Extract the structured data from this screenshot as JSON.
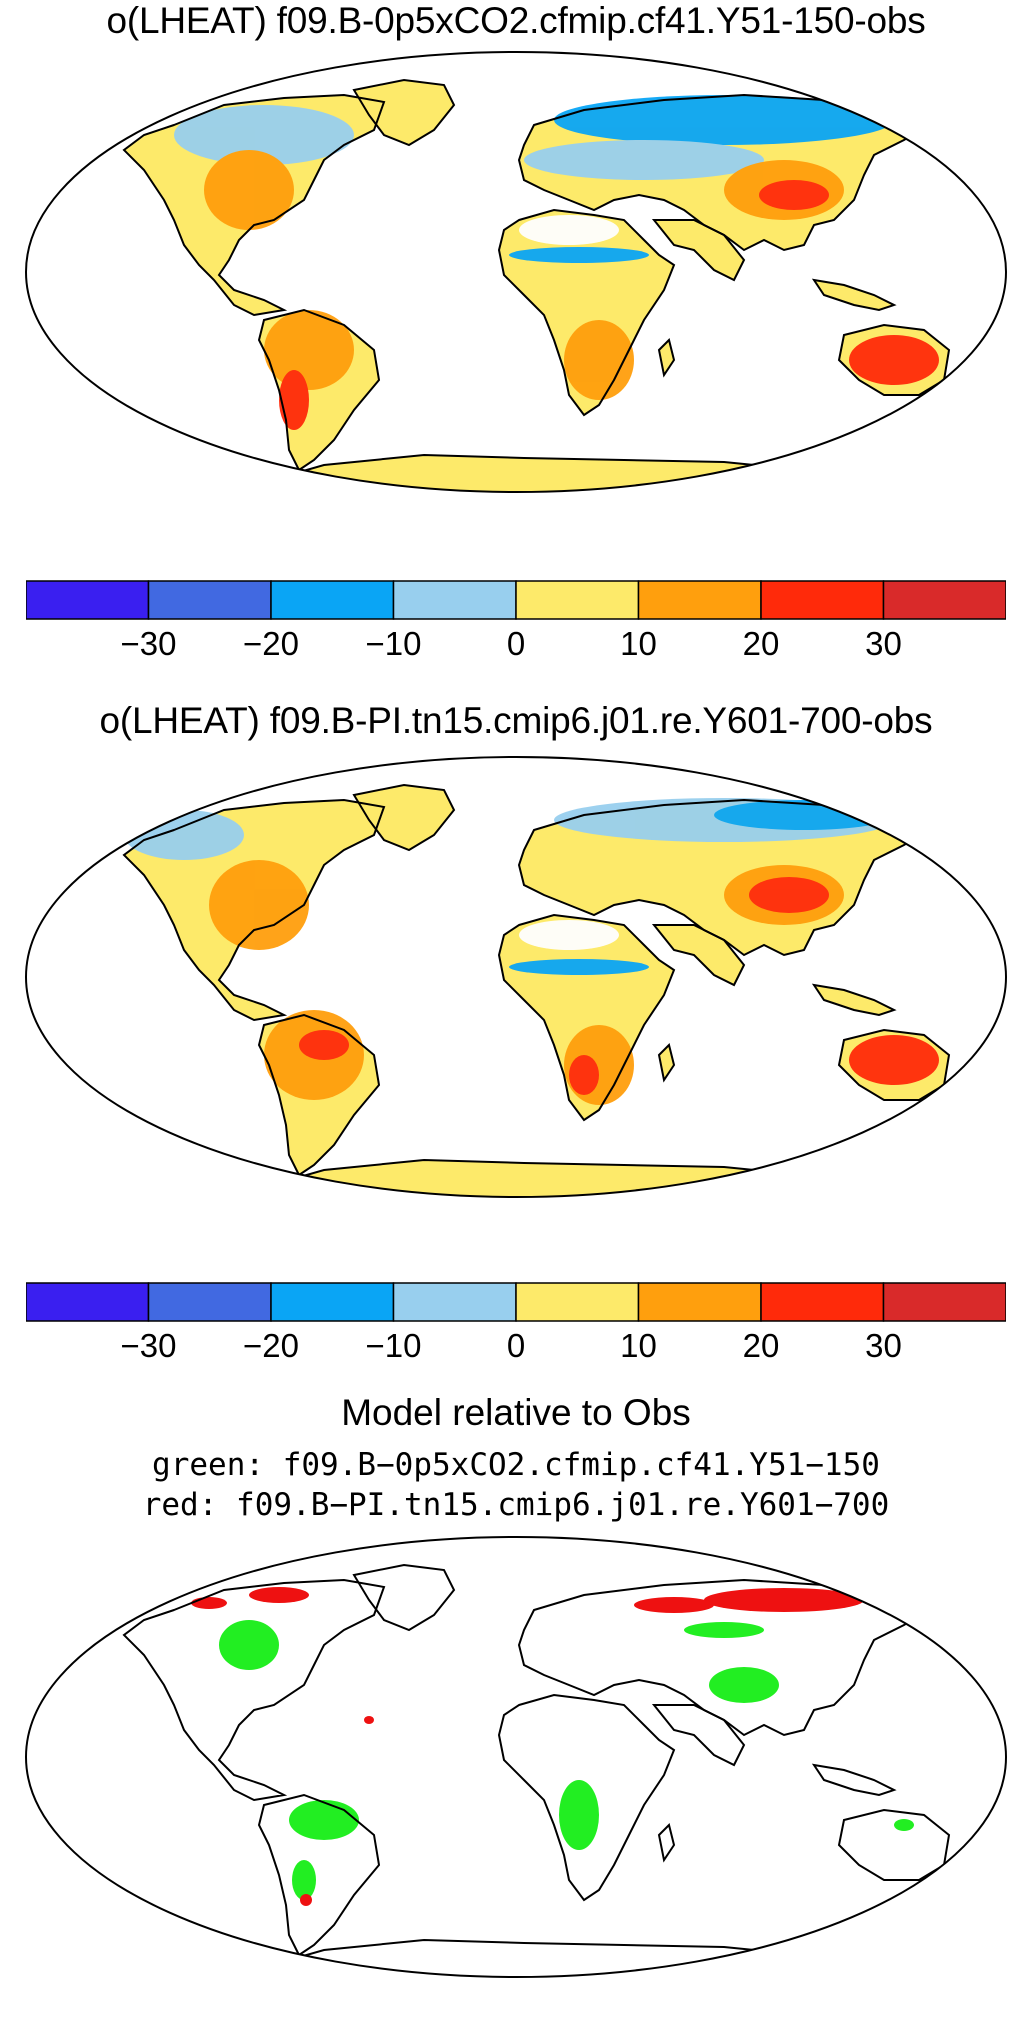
{
  "panels": [
    {
      "title": "o(LHEAT) f09.B-0p5xCO2.cfmip.cf41.Y51-150-obs"
    },
    {
      "title": "o(LHEAT) f09.B-PI.tn15.cmip6.j01.re.Y601-700-obs"
    }
  ],
  "colorbar": {
    "colors": [
      "#3a1ff0",
      "#4169e1",
      "#0aa5f5",
      "#98cfee",
      "#fdea6a",
      "#ff9f0d",
      "#ff2a0a",
      "#d92a2a"
    ],
    "tick_labels": [
      "−30",
      "−20",
      "−10",
      "0",
      "10",
      "20",
      "30"
    ],
    "ticks": [
      -30,
      -20,
      -10,
      0,
      10,
      20,
      30
    ],
    "range": [
      -40,
      40
    ]
  },
  "comparison": {
    "title": "Model relative to Obs",
    "green_label": "green: f09.B−0p5xCO2.cfmip.cf41.Y51−150",
    "red_label": "red: f09.B−PI.tn15.cmip6.j01.re.Y601−700",
    "green_color": "#22ee22",
    "red_color": "#ee1111"
  }
}
